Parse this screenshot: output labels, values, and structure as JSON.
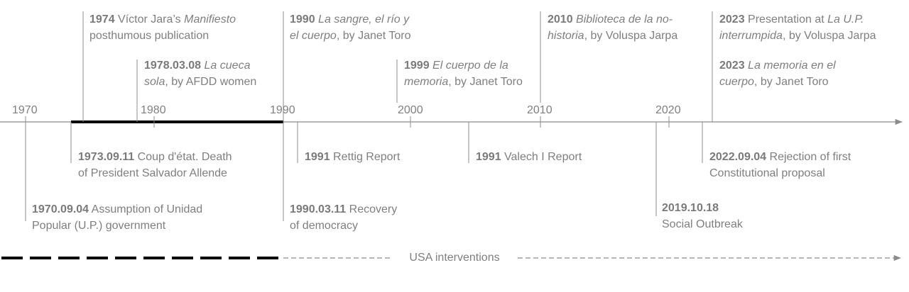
{
  "axis": {
    "years": [
      "1970",
      "1980",
      "1990",
      "2000",
      "2010",
      "2020"
    ]
  },
  "events_above": [
    {
      "date": "1974",
      "pre": " Víctor Jara’s ",
      "title": "Manifiesto",
      "line2_title": "",
      "line2_post": "posthumous publication"
    },
    {
      "date": "1978.03.08",
      "pre": " ",
      "title": "La cueca",
      "line2_title": "sola",
      "line2_post": ", by AFDD women"
    },
    {
      "date": "1990",
      "pre": " ",
      "title": "La sangre, el río y",
      "line2_title": "el cuerpo",
      "line2_post": ", by Janet Toro"
    },
    {
      "date": "1999",
      "pre": " ",
      "title": "El cuerpo de la",
      "line2_title": "memoria",
      "line2_post": ", by Janet Toro"
    },
    {
      "date": "2010",
      "pre": " ",
      "title": "Biblioteca de la no-",
      "line2_title": "historia",
      "line2_post": ", by Voluspa Jarpa"
    },
    {
      "date": "2023",
      "pre": " Presentation at ",
      "title": "La U.P.",
      "line2_title": "interrumpida",
      "line2_post": ", by Voluspa Jarpa"
    },
    {
      "date": "2023",
      "pre": " ",
      "title": "La memoria en el",
      "line2_title": "cuerpo",
      "line2_post": ", by Janet Toro"
    }
  ],
  "events_below": [
    {
      "date": "1973.09.11",
      "line1": " Coup d'état. Death",
      "line2": "of President Salvador Allende"
    },
    {
      "date": "1991",
      "line1": " Rettig Report",
      "line2": ""
    },
    {
      "date": "1991",
      "line1": " Valech I Report",
      "line2": ""
    },
    {
      "date": "2022.09.04",
      "line1": " Rejection of first",
      "line2": "Constitutional proposal"
    },
    {
      "date": "1970.09.04",
      "line1": " Assumption of Unidad",
      "line2": "Popular (U.P.) government"
    },
    {
      "date": "1990.03.11",
      "line1": " Recovery",
      "line2": "of democracy"
    },
    {
      "date": "2019.10.18",
      "line1": "",
      "line2": "Social Outbreak"
    }
  ],
  "usa": {
    "label": "USA interventions"
  },
  "colors": {
    "line": "#8c8c8c",
    "text": "#7f7f7f",
    "emphasis": "#000000"
  }
}
